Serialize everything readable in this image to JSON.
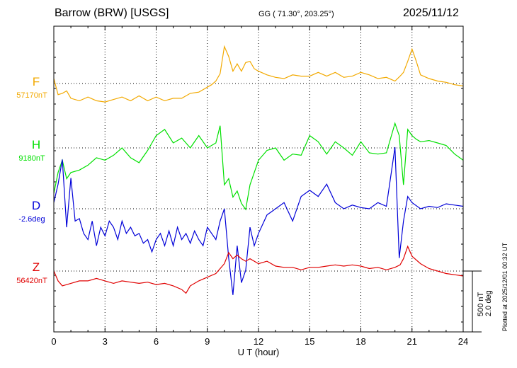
{
  "header": {
    "station": "Barrow (BRW)  [USGS]",
    "coords": "GG ( 71.30°, 203.25°)",
    "date": "2025/11/12"
  },
  "plotted_note": "Plotted at 2025/12/01 00:32 UT",
  "scale_bar": {
    "line1": "500 nT",
    "line2": "2.0 deg"
  },
  "colors": {
    "F": "#f2a900",
    "H": "#00e000",
    "D": "#0000d8",
    "Z": "#e00000"
  },
  "chart_data": {
    "type": "line",
    "title": "Barrow (BRW)  [USGS]",
    "xlabel": "U T (hour)",
    "xlim": [
      0,
      24
    ],
    "x_ticks": [
      "0",
      "3",
      "6",
      "9",
      "12",
      "15",
      "18",
      "21",
      "24"
    ],
    "grid": true,
    "series": [
      {
        "key": "F",
        "name": "F",
        "baseline_label": "57170nT",
        "x": [
          0.0,
          0.25,
          0.5,
          0.75,
          1.0,
          1.5,
          2.0,
          2.5,
          3.0,
          3.5,
          4.0,
          4.5,
          5.0,
          5.5,
          6.0,
          6.5,
          7.0,
          7.5,
          8.0,
          8.5,
          9.0,
          9.25,
          9.5,
          9.75,
          10.0,
          10.25,
          10.5,
          10.75,
          11.0,
          11.25,
          11.5,
          11.75,
          12.0,
          12.5,
          13.0,
          13.5,
          14.0,
          14.5,
          15.0,
          15.5,
          16.0,
          16.5,
          17.0,
          17.5,
          18.0,
          18.5,
          19.0,
          19.5,
          20.0,
          20.3,
          20.5,
          20.75,
          21.0,
          21.25,
          21.5,
          22.0,
          22.5,
          23.0,
          23.5,
          24.0
        ],
        "y": [
          40,
          -90,
          -80,
          -60,
          -120,
          -140,
          -110,
          -140,
          -150,
          -130,
          -110,
          -140,
          -100,
          -140,
          -110,
          -140,
          -120,
          -120,
          -80,
          -70,
          -30,
          -10,
          20,
          80,
          300,
          220,
          100,
          160,
          100,
          170,
          180,
          120,
          100,
          70,
          50,
          40,
          70,
          60,
          60,
          90,
          60,
          90,
          50,
          60,
          90,
          70,
          40,
          50,
          20,
          60,
          90,
          180,
          280,
          180,
          70,
          40,
          20,
          10,
          -10,
          -20
        ]
      },
      {
        "key": "H",
        "name": "H",
        "baseline_label": "9180nT",
        "x": [
          0.0,
          0.25,
          0.5,
          0.75,
          1.0,
          1.5,
          2.0,
          2.5,
          3.0,
          3.5,
          4.0,
          4.5,
          5.0,
          5.5,
          6.0,
          6.5,
          7.0,
          7.5,
          8.0,
          8.5,
          9.0,
          9.5,
          9.75,
          10.0,
          10.25,
          10.5,
          10.75,
          11.0,
          11.25,
          11.5,
          11.75,
          12.0,
          12.5,
          13.0,
          13.5,
          14.0,
          14.5,
          15.0,
          15.5,
          16.0,
          16.5,
          17.0,
          17.5,
          18.0,
          18.5,
          19.0,
          19.5,
          20.0,
          20.25,
          20.5,
          20.75,
          21.0,
          21.25,
          21.5,
          22.0,
          22.5,
          23.0,
          23.5,
          24.0
        ],
        "y": [
          -370,
          -200,
          -100,
          -250,
          -200,
          -180,
          -140,
          -80,
          -100,
          -60,
          0,
          -80,
          -120,
          -20,
          100,
          150,
          40,
          80,
          0,
          100,
          0,
          40,
          180,
          -300,
          -250,
          -400,
          -350,
          -450,
          -500,
          -300,
          -200,
          -100,
          -20,
          0,
          -100,
          -50,
          -60,
          100,
          50,
          -50,
          50,
          0,
          -60,
          50,
          -40,
          -50,
          -40,
          200,
          100,
          -300,
          150,
          100,
          70,
          50,
          60,
          40,
          20,
          -50,
          -100
        ]
      },
      {
        "key": "D",
        "name": "D",
        "baseline_label": "-2.6deg",
        "x": [
          0.0,
          0.25,
          0.5,
          0.75,
          1.0,
          1.25,
          1.5,
          1.75,
          2.0,
          2.25,
          2.5,
          2.75,
          3.0,
          3.25,
          3.5,
          3.75,
          4.0,
          4.25,
          4.5,
          4.75,
          5.0,
          5.25,
          5.5,
          5.75,
          6.0,
          6.25,
          6.5,
          6.75,
          7.0,
          7.25,
          7.5,
          7.75,
          8.0,
          8.25,
          8.5,
          8.75,
          9.0,
          9.25,
          9.5,
          9.75,
          10.0,
          10.25,
          10.5,
          10.75,
          11.0,
          11.25,
          11.5,
          11.75,
          12.0,
          12.5,
          13.0,
          13.5,
          14.0,
          14.5,
          15.0,
          15.5,
          16.0,
          16.5,
          17.0,
          17.5,
          18.0,
          18.5,
          19.0,
          19.5,
          20.0,
          20.25,
          20.5,
          20.75,
          21.0,
          21.5,
          22.0,
          22.5,
          23.0,
          23.5,
          24.0
        ],
        "y": [
          50,
          200,
          400,
          -150,
          250,
          -100,
          -80,
          -200,
          -250,
          -100,
          -300,
          -150,
          -220,
          -100,
          -150,
          -250,
          -100,
          -200,
          -150,
          -220,
          -200,
          -280,
          -250,
          -350,
          -250,
          -200,
          -300,
          -180,
          -300,
          -150,
          -250,
          -200,
          -280,
          -180,
          -250,
          -300,
          -150,
          -200,
          -250,
          -100,
          0,
          -400,
          -700,
          -300,
          -600,
          -500,
          -150,
          -300,
          -200,
          -50,
          0,
          50,
          -100,
          100,
          150,
          100,
          200,
          50,
          0,
          30,
          10,
          0,
          50,
          20,
          500,
          -400,
          -100,
          100,
          50,
          0,
          20,
          10,
          40,
          30,
          20
        ]
      },
      {
        "key": "Z",
        "name": "Z",
        "baseline_label": "56420nT",
        "x": [
          0.0,
          0.25,
          0.5,
          1.0,
          1.5,
          2.0,
          2.5,
          3.0,
          3.5,
          4.0,
          4.5,
          5.0,
          5.5,
          6.0,
          6.5,
          7.0,
          7.5,
          7.75,
          8.0,
          8.5,
          9.0,
          9.5,
          10.0,
          10.25,
          10.5,
          10.75,
          11.0,
          11.25,
          11.5,
          12.0,
          12.5,
          13.0,
          13.5,
          14.0,
          14.5,
          15.0,
          15.5,
          16.0,
          16.5,
          17.0,
          17.5,
          18.0,
          18.5,
          19.0,
          19.5,
          20.0,
          20.3,
          20.5,
          20.75,
          21.0,
          21.5,
          22.0,
          22.5,
          23.0,
          23.5,
          24.0
        ],
        "y": [
          0,
          -80,
          -120,
          -100,
          -80,
          -80,
          -60,
          -80,
          -100,
          -80,
          -90,
          -100,
          -90,
          -110,
          -100,
          -120,
          -150,
          -180,
          -120,
          -80,
          -50,
          -20,
          60,
          150,
          100,
          130,
          100,
          80,
          100,
          60,
          80,
          40,
          30,
          30,
          10,
          30,
          30,
          40,
          50,
          40,
          50,
          40,
          20,
          30,
          10,
          30,
          50,
          100,
          200,
          120,
          60,
          20,
          0,
          -20,
          -30,
          -40
        ]
      }
    ]
  }
}
